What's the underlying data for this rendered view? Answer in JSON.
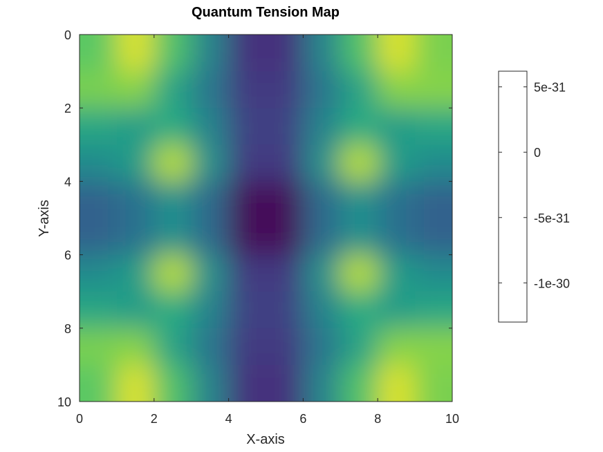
{
  "chart_data": {
    "type": "heatmap",
    "title": "Quantum Tension Map",
    "xlabel": "X-axis",
    "ylabel": "Y-axis",
    "xlim": [
      0,
      10
    ],
    "ylim": [
      10,
      0
    ],
    "x_ticks": [
      "0",
      "2",
      "4",
      "6",
      "8",
      "10"
    ],
    "x_tick_values": [
      0,
      2,
      4,
      6,
      8,
      10
    ],
    "y_ticks": [
      "0",
      "2",
      "4",
      "6",
      "8",
      "10"
    ],
    "y_tick_values": [
      0,
      2,
      4,
      6,
      8,
      10
    ],
    "y_direction": "reversed",
    "colormap": "viridis",
    "grid": false,
    "colorbar": {
      "ticks": [
        "5e-31",
        "0",
        "-5e-31",
        "-1e-30"
      ],
      "tick_values": [
        5e-31,
        0,
        -5e-31,
        -1e-30
      ],
      "range": [
        -1.3e-30,
        6.2e-31
      ],
      "fill": "none"
    },
    "grid_shape": [
      10,
      10
    ],
    "x_centers": [
      0.5,
      1.5,
      2.5,
      3.5,
      4.5,
      5.5,
      6.5,
      7.5,
      8.5,
      9.5
    ],
    "y_centers": [
      0.5,
      1.5,
      2.5,
      3.5,
      4.5,
      5.5,
      6.5,
      7.5,
      8.5,
      9.5
    ],
    "values": [
      [
        0.75,
        0.95,
        0.72,
        0.45,
        0.15,
        0.15,
        0.45,
        0.72,
        0.95,
        0.8
      ],
      [
        0.8,
        0.82,
        0.58,
        0.4,
        0.18,
        0.18,
        0.4,
        0.58,
        0.82,
        0.82
      ],
      [
        0.6,
        0.55,
        0.62,
        0.45,
        0.2,
        0.2,
        0.45,
        0.62,
        0.55,
        0.6
      ],
      [
        0.48,
        0.55,
        0.9,
        0.5,
        0.18,
        0.18,
        0.5,
        0.9,
        0.55,
        0.48
      ],
      [
        0.32,
        0.38,
        0.5,
        0.35,
        0.02,
        0.02,
        0.35,
        0.5,
        0.38,
        0.32
      ],
      [
        0.32,
        0.38,
        0.5,
        0.35,
        0.02,
        0.02,
        0.35,
        0.5,
        0.38,
        0.32
      ],
      [
        0.48,
        0.55,
        0.9,
        0.5,
        0.18,
        0.18,
        0.5,
        0.9,
        0.55,
        0.48
      ],
      [
        0.6,
        0.55,
        0.62,
        0.45,
        0.2,
        0.2,
        0.45,
        0.62,
        0.55,
        0.6
      ],
      [
        0.8,
        0.82,
        0.58,
        0.4,
        0.18,
        0.18,
        0.4,
        0.58,
        0.82,
        0.82
      ],
      [
        0.75,
        0.95,
        0.72,
        0.45,
        0.15,
        0.15,
        0.45,
        0.72,
        0.95,
        0.8
      ]
    ]
  }
}
